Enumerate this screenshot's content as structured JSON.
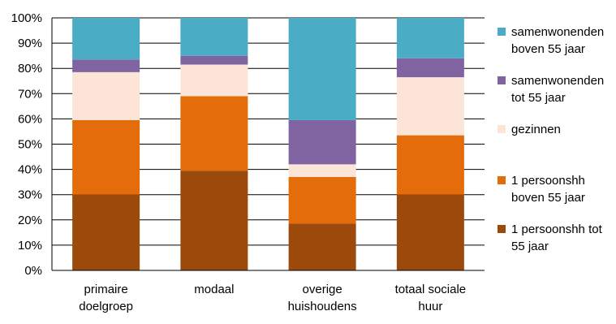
{
  "chart_data": {
    "type": "bar",
    "stacked": true,
    "percent_stacked": true,
    "categories": [
      [
        "primaire",
        "doelgroep"
      ],
      [
        "modaal"
      ],
      [
        "overige",
        "huishoudens"
      ],
      [
        "totaal sociale",
        "huur"
      ]
    ],
    "series": [
      {
        "name": [
          "1 persoonshh tot",
          "55 jaar"
        ],
        "color": "#9C4A0C",
        "values": [
          30,
          39.5,
          18.5,
          30
        ]
      },
      {
        "name": [
          "1 persoonshh",
          "boven 55 jaar"
        ],
        "color": "#E46C0A",
        "values": [
          29.5,
          29.5,
          18.5,
          23.5
        ]
      },
      {
        "name": [
          "gezinnen"
        ],
        "color": "#FCE4D6",
        "values": [
          19,
          12.5,
          5,
          23
        ]
      },
      {
        "name": [
          "samenwonenden",
          "tot 55 jaar"
        ],
        "color": "#8064A2",
        "values": [
          5,
          3.5,
          17.5,
          7.5
        ]
      },
      {
        "name": [
          "samenwonenden",
          "boven 55 jaar"
        ],
        "color": "#4BACC6",
        "values": [
          16.5,
          15,
          40.5,
          16
        ]
      }
    ],
    "yticks": [
      "0%",
      "10%",
      "20%",
      "30%",
      "40%",
      "50%",
      "60%",
      "70%",
      "80%",
      "90%",
      "100%"
    ],
    "ylim": [
      0,
      100
    ],
    "grid": true,
    "legend_position": "right"
  }
}
